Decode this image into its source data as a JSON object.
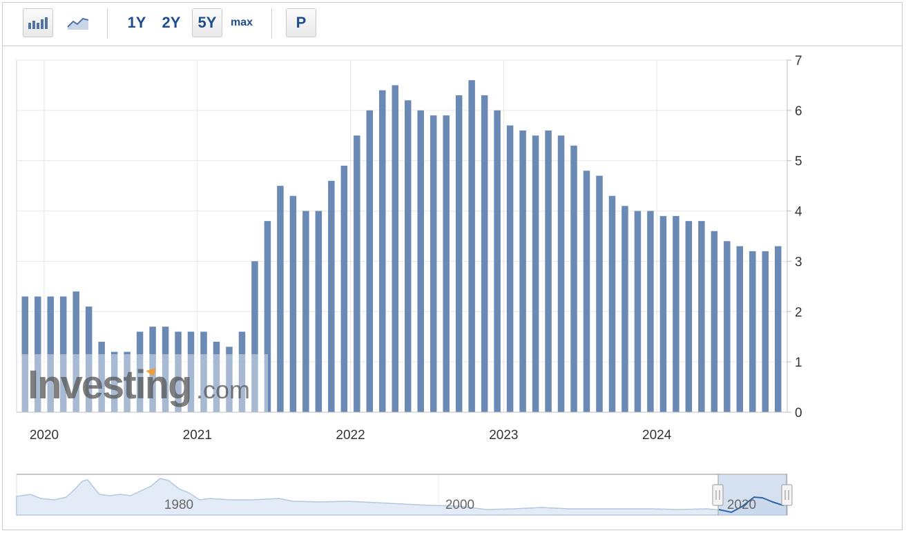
{
  "toolbar": {
    "bar_chart_icon": "bar-chart-icon",
    "line_chart_icon": "line-chart-icon",
    "range_1y": "1Y",
    "range_2y": "2Y",
    "range_5y": "5Y",
    "range_max": "max",
    "p_button": "P"
  },
  "watermark": {
    "brand": "Investing",
    "suffix": ".com"
  },
  "navigator": {
    "labels": [
      "1980",
      "2000",
      "2020"
    ]
  },
  "colors": {
    "bar": "#6a89b4",
    "grid": "#e6e6e6",
    "accent": "#1f4e8c",
    "navigator_fill": "#dbe6f2"
  },
  "chart_data": {
    "type": "bar",
    "title": "",
    "xlabel": "",
    "ylabel": "",
    "ylim": [
      0,
      7
    ],
    "yticks": [
      "0",
      "1",
      "2",
      "3",
      "4",
      "5",
      "6",
      "7"
    ],
    "y_axis_side": "right",
    "grid": true,
    "xtick_labels": [
      "2020",
      "2021",
      "2022",
      "2023",
      "2024"
    ],
    "start": "2020-01",
    "end": "2024-12",
    "values": [
      2.3,
      2.3,
      2.3,
      2.3,
      2.4,
      2.1,
      1.4,
      1.2,
      1.2,
      1.6,
      1.7,
      1.7,
      1.6,
      1.6,
      1.6,
      1.4,
      1.3,
      1.6,
      3.0,
      3.8,
      4.5,
      4.3,
      4.0,
      4.0,
      4.6,
      4.9,
      5.5,
      6.0,
      6.4,
      6.5,
      6.2,
      6.0,
      5.9,
      5.9,
      6.3,
      6.6,
      6.3,
      6.0,
      5.7,
      5.6,
      5.5,
      5.6,
      5.5,
      5.3,
      4.8,
      4.7,
      4.3,
      4.1,
      4.0,
      4.0,
      3.9,
      3.9,
      3.8,
      3.8,
      3.6,
      3.4,
      3.3,
      3.2,
      3.2,
      3.3
    ]
  }
}
